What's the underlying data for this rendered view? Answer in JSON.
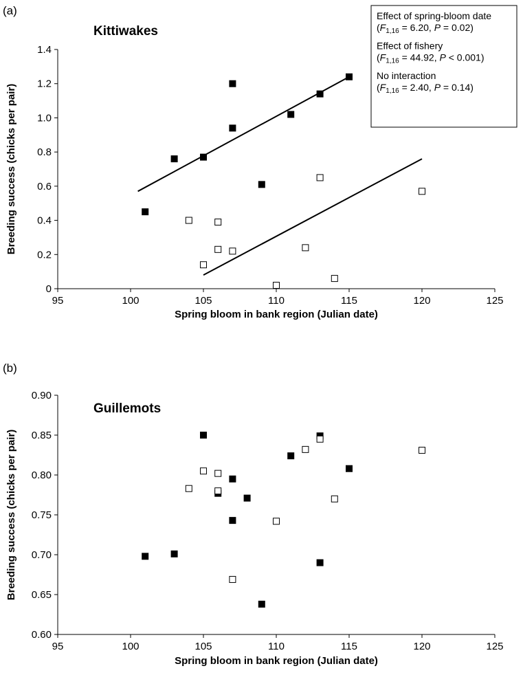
{
  "chart_data": [
    {
      "type": "scatter",
      "panel_label": "(a)",
      "title": "Kittiwakes",
      "xlabel": "Spring bloom in bank region (Julian date)",
      "ylabel": "Breeding success (chicks per pair)",
      "xlim": [
        95,
        125
      ],
      "ylim": [
        0,
        1.4
      ],
      "xticks": [
        "95",
        "100",
        "105",
        "110",
        "115",
        "120",
        "125"
      ],
      "yticks": [
        "0",
        "0.2",
        "0.4",
        "0.6",
        "0.8",
        "1.0",
        "1.2",
        "1.4"
      ],
      "grid": false,
      "series": [
        {
          "marker": "filled-square",
          "color": "#000000",
          "points": [
            [
              101,
              0.45
            ],
            [
              103,
              0.76
            ],
            [
              105,
              0.77
            ],
            [
              107,
              1.2
            ],
            [
              107,
              0.94
            ],
            [
              109,
              0.61
            ],
            [
              111,
              1.02
            ],
            [
              113,
              1.14
            ],
            [
              115,
              1.24
            ]
          ],
          "fit_line": [
            [
              100.5,
              0.57
            ],
            [
              115,
              1.24
            ]
          ]
        },
        {
          "marker": "open-square",
          "color": "#000000",
          "points": [
            [
              104,
              0.4
            ],
            [
              106,
              0.39
            ],
            [
              106,
              0.23
            ],
            [
              107,
              0.22
            ],
            [
              105,
              0.14
            ],
            [
              110,
              0.02
            ],
            [
              112,
              0.24
            ],
            [
              113,
              0.65
            ],
            [
              114,
              0.06
            ],
            [
              120,
              0.57
            ]
          ],
          "fit_line": [
            [
              105,
              0.08
            ],
            [
              120,
              0.76
            ]
          ]
        }
      ],
      "annotation": {
        "lines": [
          [
            {
              "t": "Effect of spring-bloom date"
            }
          ],
          [
            {
              "t": "("
            },
            {
              "t": "F",
              "i": 1
            },
            {
              "t": "1,16",
              "sub": 1
            },
            {
              "t": " = 6.20, "
            },
            {
              "t": "P",
              "i": 1
            },
            {
              "t": " = 0.02)"
            }
          ],
          [
            {
              "t": "Effect of fishery"
            }
          ],
          [
            {
              "t": "("
            },
            {
              "t": "F",
              "i": 1
            },
            {
              "t": "1,16",
              "sub": 1
            },
            {
              "t": " = 44.92, "
            },
            {
              "t": "P",
              "i": 1
            },
            {
              "t": " < 0.001)"
            }
          ],
          [
            {
              "t": "No interaction"
            }
          ],
          [
            {
              "t": "("
            },
            {
              "t": "F",
              "i": 1
            },
            {
              "t": "1,16",
              "sub": 1
            },
            {
              "t": " = 2.40, "
            },
            {
              "t": "P",
              "i": 1
            },
            {
              "t": " = 0.14)"
            }
          ]
        ]
      }
    },
    {
      "type": "scatter",
      "panel_label": "(b)",
      "title": "Guillemots",
      "xlabel": "Spring bloom in bank region (Julian date)",
      "ylabel": "Breeding success (chicks per pair)",
      "xlim": [
        95,
        125
      ],
      "ylim": [
        0.6,
        0.9
      ],
      "xticks": [
        "95",
        "100",
        "105",
        "110",
        "115",
        "120",
        "125"
      ],
      "yticks": [
        "0.60",
        "0.65",
        "0.70",
        "0.75",
        "0.80",
        "0.85",
        "0.90"
      ],
      "grid": false,
      "series": [
        {
          "marker": "filled-square",
          "color": "#000000",
          "points": [
            [
              101,
              0.698
            ],
            [
              103,
              0.701
            ],
            [
              105,
              0.85
            ],
            [
              106,
              0.777
            ],
            [
              107,
              0.795
            ],
            [
              107,
              0.743
            ],
            [
              108,
              0.771
            ],
            [
              109,
              0.638
            ],
            [
              111,
              0.824
            ],
            [
              113,
              0.849
            ],
            [
              113,
              0.69
            ],
            [
              115,
              0.808
            ]
          ]
        },
        {
          "marker": "open-square",
          "color": "#000000",
          "points": [
            [
              104,
              0.783
            ],
            [
              105,
              0.805
            ],
            [
              106,
              0.802
            ],
            [
              106,
              0.78
            ],
            [
              107,
              0.669
            ],
            [
              110,
              0.742
            ],
            [
              112,
              0.832
            ],
            [
              113,
              0.845
            ],
            [
              114,
              0.77
            ],
            [
              120,
              0.831
            ]
          ]
        }
      ]
    }
  ]
}
